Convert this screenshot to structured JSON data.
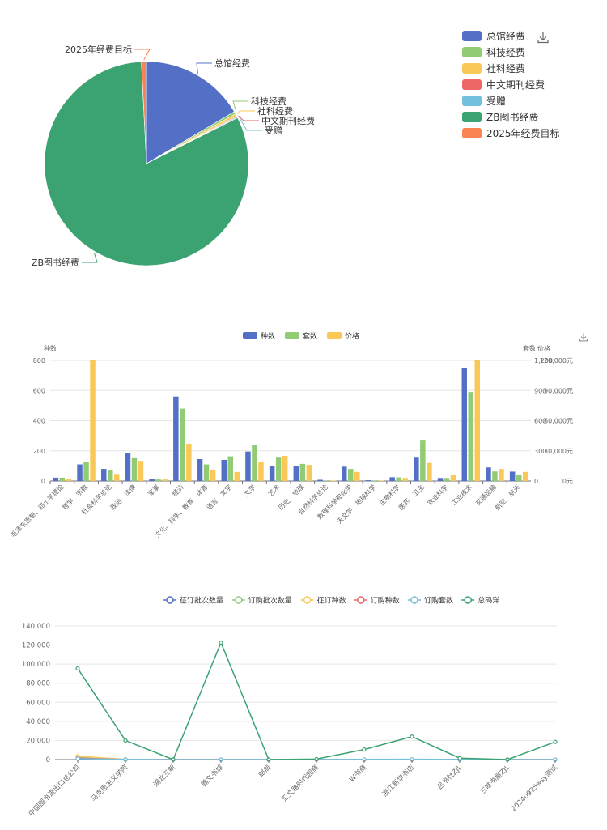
{
  "chart_data": [
    {
      "type": "pie",
      "title": "",
      "colors": [
        "#5470c6",
        "#91cc75",
        "#fac858",
        "#ee6666",
        "#73c0de",
        "#3ba272",
        "#fc8452"
      ],
      "legend": [
        "总馆经费",
        "科技经费",
        "社科经费",
        "中文期刊经费",
        "受赠",
        "ZB图书经费",
        "2025年经费目标"
      ],
      "slices": [
        {
          "name": "总馆经费",
          "value": 16.5
        },
        {
          "name": "科技经费",
          "value": 0.4
        },
        {
          "name": "社科经费",
          "value": 0.4
        },
        {
          "name": "中文期刊经费",
          "value": 0.15
        },
        {
          "name": "受赠",
          "value": 0.15
        },
        {
          "name": "ZB图书经费",
          "value": 81.6
        },
        {
          "name": "2025年经费目标",
          "value": 0.8
        }
      ]
    },
    {
      "type": "bar",
      "legend": [
        "种数",
        "套数",
        "价格"
      ],
      "colors": [
        "#5470c6",
        "#91cc75",
        "#fac858"
      ],
      "left_axis": {
        "name": "种数",
        "min": 0,
        "max": 800,
        "ticks": [
          "0",
          "200",
          "400",
          "600",
          "800"
        ]
      },
      "right_axis_1": {
        "name": "套数",
        "min": 0,
        "max": 1200,
        "ticks": [
          "0",
          "300",
          "600",
          "900",
          "1,200"
        ]
      },
      "right_axis_2": {
        "name": "价格",
        "min": 0,
        "max": 120000,
        "ticks": [
          "0元",
          "30,000元",
          "60,000元",
          "90,000元",
          "120,000元"
        ]
      },
      "categories": [
        "毛泽东思想、邓小平理论",
        "哲学、宗教",
        "社会科学总论",
        "政治、法律",
        "军事",
        "经济",
        "文化、科学、教育、体育",
        "语言、文字",
        "文学",
        "艺术",
        "历史、地理",
        "自然科学总论",
        "数理科学和化学",
        "天文学、地球科学",
        "生物科学",
        "医药、卫生",
        "农业科学",
        "工业技术",
        "交通运输",
        "航空、航天"
      ],
      "series": [
        {
          "name": "种数",
          "axis": "left",
          "values": [
            22,
            110,
            80,
            185,
            15,
            560,
            145,
            140,
            195,
            100,
            100,
            8,
            95,
            5,
            25,
            160,
            20,
            750,
            90,
            62
          ]
        },
        {
          "name": "套数",
          "axis": "right1",
          "values": [
            33,
            185,
            105,
            235,
            15,
            720,
            165,
            245,
            355,
            240,
            170,
            6,
            120,
            6,
            36,
            410,
            30,
            885,
            95,
            65
          ]
        },
        {
          "name": "价格",
          "axis": "right2",
          "values": [
            2000,
            122000,
            7000,
            20000,
            1500,
            37000,
            11000,
            9000,
            19000,
            25000,
            16000,
            500,
            9000,
            500,
            3000,
            18000,
            6000,
            126000,
            12000,
            9000
          ]
        }
      ]
    },
    {
      "type": "line",
      "legend": [
        "征订批次数量",
        "订购批次数量",
        "征订种数",
        "订购种数",
        "订购套数",
        "总码洋"
      ],
      "colors": [
        "#5470c6",
        "#91cc75",
        "#fac858",
        "#ee6666",
        "#73c0de",
        "#3ba272"
      ],
      "ylim": [
        0,
        140000
      ],
      "y_ticks": [
        "0",
        "20,000",
        "40,000",
        "60,000",
        "80,000",
        "100,000",
        "120,000",
        "140,000"
      ],
      "categories": [
        "中国图书进出口总公司",
        "马克思主义学院",
        "湖北三新",
        "翰文书城",
        "邮局",
        "汇文路时代园商",
        "W书商",
        "浙江新华书店",
        "吕书社ZJL",
        "三味书屋ZJL",
        "20240925wsy测试"
      ],
      "series": [
        {
          "name": "征订批次数量",
          "values": [
            1000,
            100,
            0,
            0,
            0,
            0,
            0,
            0,
            0,
            0,
            0
          ]
        },
        {
          "name": "订购批次数量",
          "values": [
            2000,
            100,
            0,
            0,
            0,
            0,
            0,
            0,
            0,
            0,
            0
          ]
        },
        {
          "name": "征订种数",
          "values": [
            3500,
            200,
            0,
            0,
            0,
            0,
            0,
            0,
            0,
            0,
            0
          ]
        },
        {
          "name": "订购种数",
          "values": [
            1500,
            100,
            0,
            0,
            0,
            0,
            0,
            0,
            0,
            0,
            0
          ]
        },
        {
          "name": "订购套数",
          "values": [
            1000,
            200,
            0,
            0,
            100,
            100,
            200,
            300,
            100,
            0,
            0
          ]
        },
        {
          "name": "总码洋",
          "values": [
            95500,
            20000,
            0,
            122500,
            0,
            500,
            10500,
            24000,
            1500,
            0,
            18500
          ]
        }
      ]
    }
  ]
}
